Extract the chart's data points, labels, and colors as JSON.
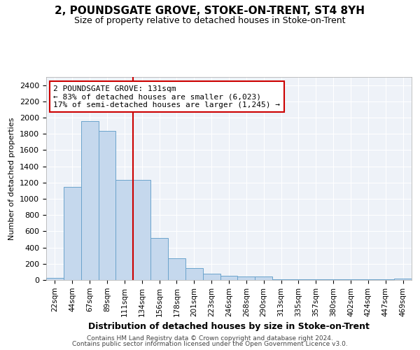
{
  "title_line1": "2, POUNDSGATE GROVE, STOKE-ON-TRENT, ST4 8YH",
  "title_line2": "Size of property relative to detached houses in Stoke-on-Trent",
  "xlabel": "Distribution of detached houses by size in Stoke-on-Trent",
  "ylabel": "Number of detached properties",
  "categories": [
    "22sqm",
    "44sqm",
    "67sqm",
    "89sqm",
    "111sqm",
    "134sqm",
    "156sqm",
    "178sqm",
    "201sqm",
    "223sqm",
    "246sqm",
    "268sqm",
    "290sqm",
    "313sqm",
    "335sqm",
    "357sqm",
    "380sqm",
    "402sqm",
    "424sqm",
    "447sqm",
    "469sqm"
  ],
  "values": [
    30,
    1150,
    1960,
    1840,
    1230,
    1230,
    520,
    265,
    150,
    80,
    50,
    45,
    40,
    5,
    5,
    5,
    5,
    5,
    5,
    5,
    20
  ],
  "bar_color": "#c5d8ed",
  "bar_edge_color": "#6ba3cc",
  "vline_x_index": 5,
  "vline_color": "#cc0000",
  "annotation_text": "2 POUNDSGATE GROVE: 131sqm\n← 83% of detached houses are smaller (6,023)\n17% of semi-detached houses are larger (1,245) →",
  "annotation_box_color": "white",
  "annotation_box_edgecolor": "#cc0000",
  "ylim": [
    0,
    2500
  ],
  "yticks": [
    0,
    200,
    400,
    600,
    800,
    1000,
    1200,
    1400,
    1600,
    1800,
    2000,
    2200,
    2400
  ],
  "footer_line1": "Contains HM Land Registry data © Crown copyright and database right 2024.",
  "footer_line2": "Contains public sector information licensed under the Open Government Licence v3.0.",
  "bg_color": "white",
  "plot_bg_color": "#eef2f8",
  "grid_color": "white",
  "title_fontsize": 11,
  "subtitle_fontsize": 9,
  "ylabel_fontsize": 8,
  "xlabel_fontsize": 9,
  "tick_fontsize": 8,
  "xtick_fontsize": 7.5
}
